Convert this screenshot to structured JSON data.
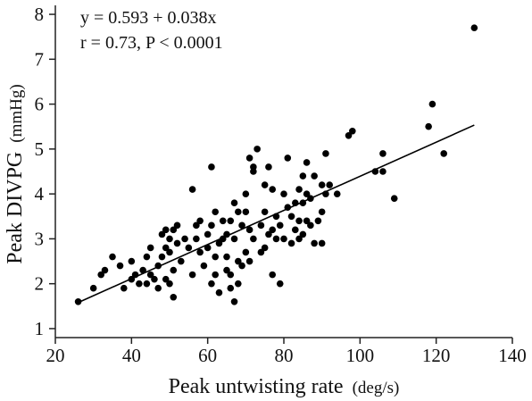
{
  "chart_data": {
    "type": "scatter",
    "xlabel": "Peak untwisting rate",
    "xlabel_unit": "(deg/s)",
    "ylabel": "Peak DIVPG",
    "ylabel_unit": "(mmHg)",
    "xlim": [
      20,
      140
    ],
    "ylim": [
      0.8,
      8.2
    ],
    "xticks": [
      "20",
      "40",
      "60",
      "80",
      "100",
      "120",
      "140"
    ],
    "yticks": [
      "1",
      "2",
      "3",
      "4",
      "5",
      "6",
      "7",
      "8"
    ],
    "grid": false,
    "annotations": [
      "y = 0.593 + 0.038x",
      "r = 0.73, P < 0.0001"
    ],
    "regression": {
      "intercept": 0.593,
      "slope": 0.038,
      "x_range": [
        26,
        130
      ]
    },
    "points": [
      [
        26,
        1.6
      ],
      [
        30,
        1.9
      ],
      [
        32,
        2.2
      ],
      [
        33,
        2.3
      ],
      [
        35,
        2.6
      ],
      [
        37,
        2.4
      ],
      [
        38,
        1.9
      ],
      [
        40,
        2.1
      ],
      [
        40,
        2.5
      ],
      [
        41,
        2.2
      ],
      [
        42,
        2.0
      ],
      [
        43,
        2.3
      ],
      [
        44,
        2.0
      ],
      [
        44,
        2.6
      ],
      [
        45,
        2.2
      ],
      [
        45,
        2.8
      ],
      [
        46,
        2.1
      ],
      [
        47,
        1.9
      ],
      [
        47,
        2.4
      ],
      [
        48,
        2.6
      ],
      [
        48,
        3.1
      ],
      [
        49,
        2.8
      ],
      [
        49,
        2.1
      ],
      [
        49,
        3.2
      ],
      [
        50,
        2.0
      ],
      [
        50,
        3.0
      ],
      [
        50,
        2.7
      ],
      [
        51,
        3.2
      ],
      [
        51,
        1.7
      ],
      [
        51,
        2.3
      ],
      [
        52,
        2.9
      ],
      [
        52,
        3.3
      ],
      [
        53,
        2.5
      ],
      [
        54,
        3.0
      ],
      [
        55,
        2.8
      ],
      [
        56,
        2.2
      ],
      [
        56,
        4.1
      ],
      [
        57,
        3.3
      ],
      [
        57,
        3.0
      ],
      [
        58,
        2.7
      ],
      [
        58,
        3.4
      ],
      [
        59,
        2.4
      ],
      [
        60,
        3.1
      ],
      [
        60,
        2.8
      ],
      [
        61,
        4.6
      ],
      [
        61,
        2.0
      ],
      [
        61,
        3.3
      ],
      [
        62,
        2.2
      ],
      [
        62,
        2.6
      ],
      [
        62,
        3.6
      ],
      [
        63,
        1.8
      ],
      [
        63,
        2.9
      ],
      [
        64,
        3.4
      ],
      [
        64,
        3.0
      ],
      [
        65,
        2.3
      ],
      [
        65,
        2.6
      ],
      [
        65,
        3.1
      ],
      [
        66,
        3.4
      ],
      [
        66,
        2.2
      ],
      [
        66,
        1.9
      ],
      [
        67,
        3.0
      ],
      [
        67,
        3.8
      ],
      [
        67,
        1.6
      ],
      [
        68,
        2.5
      ],
      [
        68,
        2.0
      ],
      [
        68,
        3.6
      ],
      [
        69,
        3.3
      ],
      [
        69,
        2.4
      ],
      [
        70,
        2.7
      ],
      [
        70,
        3.6
      ],
      [
        70,
        4.0
      ],
      [
        71,
        4.8
      ],
      [
        71,
        3.2
      ],
      [
        71,
        2.5
      ],
      [
        72,
        4.6
      ],
      [
        72,
        4.5
      ],
      [
        72,
        3.0
      ],
      [
        73,
        5.0
      ],
      [
        74,
        3.3
      ],
      [
        74,
        2.7
      ],
      [
        75,
        3.6
      ],
      [
        75,
        2.8
      ],
      [
        75,
        4.2
      ],
      [
        76,
        3.1
      ],
      [
        76,
        4.6
      ],
      [
        77,
        3.2
      ],
      [
        77,
        4.1
      ],
      [
        77,
        2.2
      ],
      [
        78,
        3.5
      ],
      [
        78,
        3.0
      ],
      [
        79,
        2.0
      ],
      [
        79,
        3.3
      ],
      [
        80,
        4.0
      ],
      [
        80,
        3.0
      ],
      [
        81,
        3.7
      ],
      [
        81,
        4.8
      ],
      [
        82,
        3.5
      ],
      [
        82,
        2.9
      ],
      [
        83,
        3.2
      ],
      [
        83,
        3.8
      ],
      [
        84,
        3.4
      ],
      [
        84,
        4.1
      ],
      [
        84,
        3.0
      ],
      [
        85,
        3.8
      ],
      [
        85,
        4.4
      ],
      [
        85,
        3.1
      ],
      [
        86,
        3.4
      ],
      [
        86,
        4.0
      ],
      [
        86,
        4.7
      ],
      [
        87,
        3.3
      ],
      [
        87,
        3.9
      ],
      [
        88,
        2.9
      ],
      [
        88,
        4.4
      ],
      [
        89,
        3.4
      ],
      [
        90,
        3.6
      ],
      [
        90,
        4.2
      ],
      [
        90,
        2.9
      ],
      [
        91,
        4.9
      ],
      [
        91,
        4.0
      ],
      [
        92,
        4.2
      ],
      [
        94,
        4.0
      ],
      [
        97,
        5.3
      ],
      [
        98,
        5.4
      ],
      [
        104,
        4.5
      ],
      [
        106,
        4.5
      ],
      [
        106,
        4.9
      ],
      [
        109,
        3.9
      ],
      [
        118,
        5.5
      ],
      [
        119,
        6.0
      ],
      [
        122,
        4.9
      ],
      [
        130,
        7.7
      ]
    ]
  }
}
